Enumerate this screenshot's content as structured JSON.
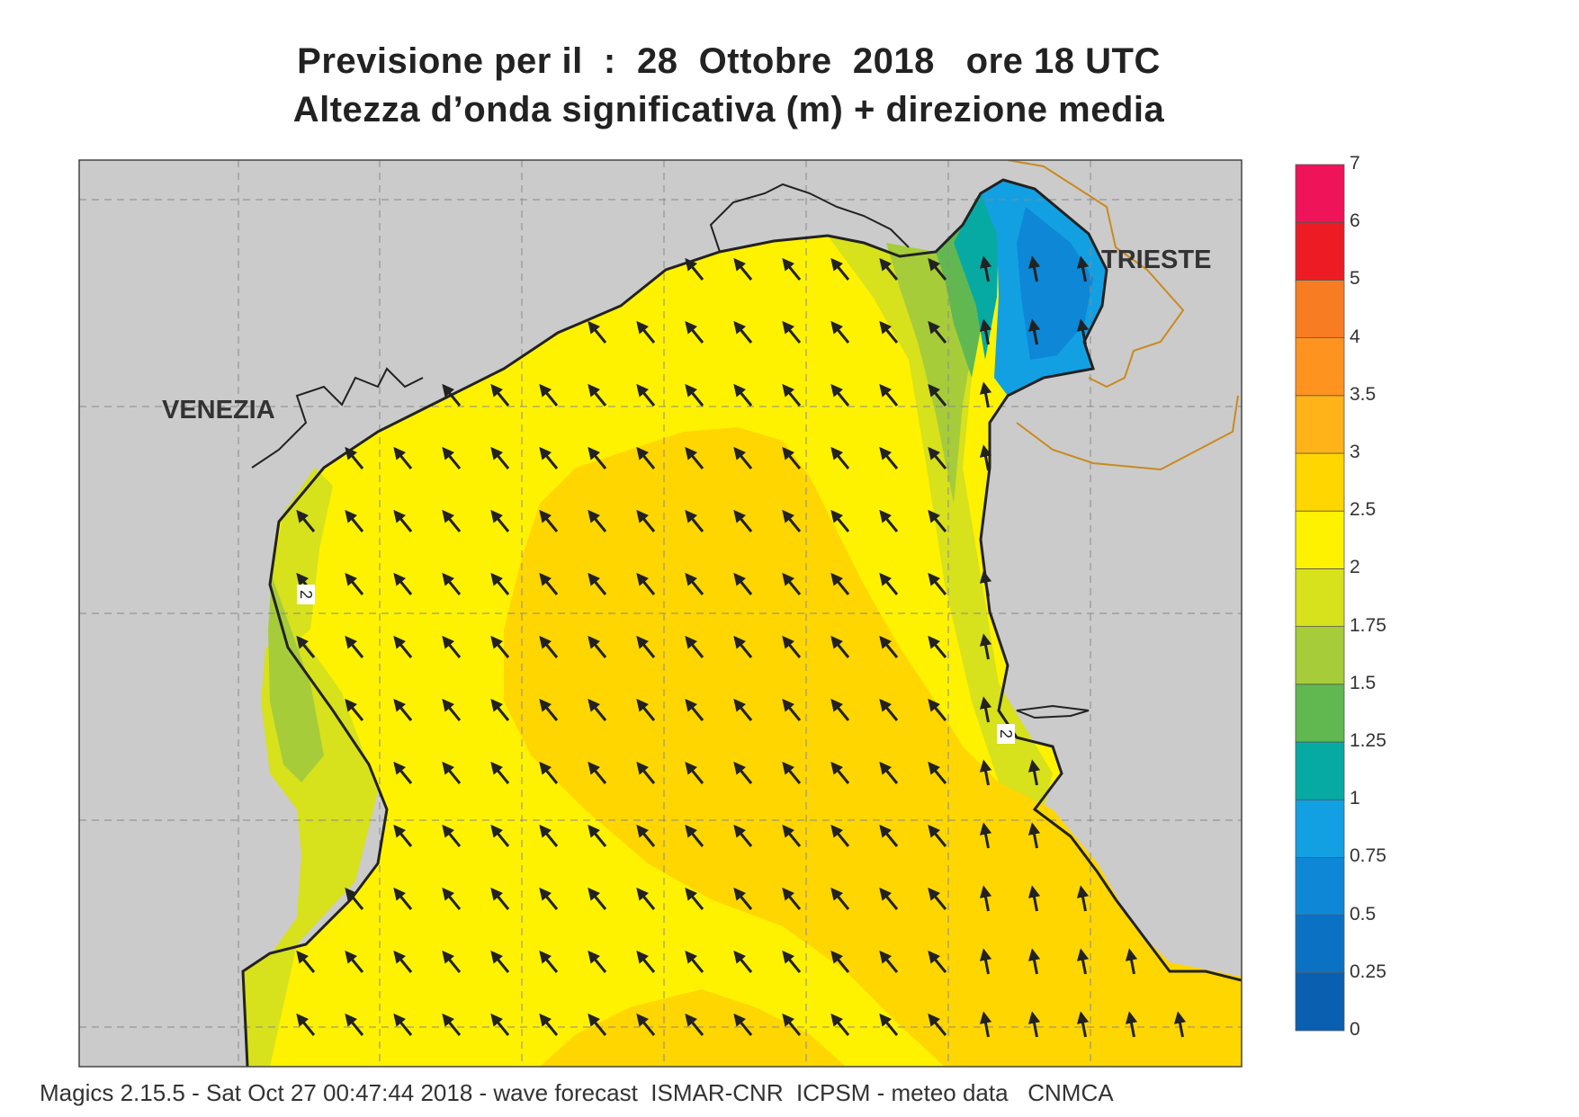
{
  "title": {
    "line1": "Previsione per il  :  28  Ottobre  2018   ore 18 UTC",
    "line2": "Altezza d’onda significativa (m) + direzione media"
  },
  "cities": {
    "venezia": "VENEZIA",
    "trieste": "TRIESTE"
  },
  "colorbar": {
    "labels": [
      "0",
      "0.25",
      "0.5",
      "0.75",
      "1",
      "1.25",
      "1.5",
      "1.75",
      "2",
      "2.5",
      "3",
      "3.5",
      "4",
      "5",
      "6",
      "7"
    ],
    "colors": [
      "#0a5fb0",
      "#0b72c3",
      "#0d87d6",
      "#12a0e3",
      "#07aaa3",
      "#62b850",
      "#a6cc3a",
      "#d7e11c",
      "#fff200",
      "#ffd600",
      "#ffb318",
      "#ff9320",
      "#f87d22",
      "#ed1c24",
      "#ef145a"
    ]
  },
  "map": {
    "land_color": "#cbcbcb",
    "sea_color": "#fff200",
    "core_color": "#ffd600",
    "border_color": "#c98a1f",
    "mean_direction": "north-west",
    "contour_labels": [
      "2",
      "2"
    ]
  },
  "footer": "Magics 2.15.5 - Sat Oct 27 00:47:44 2018 - wave forecast  ISMAR-CNR  ICPSM - meteo data   CNMCA"
}
